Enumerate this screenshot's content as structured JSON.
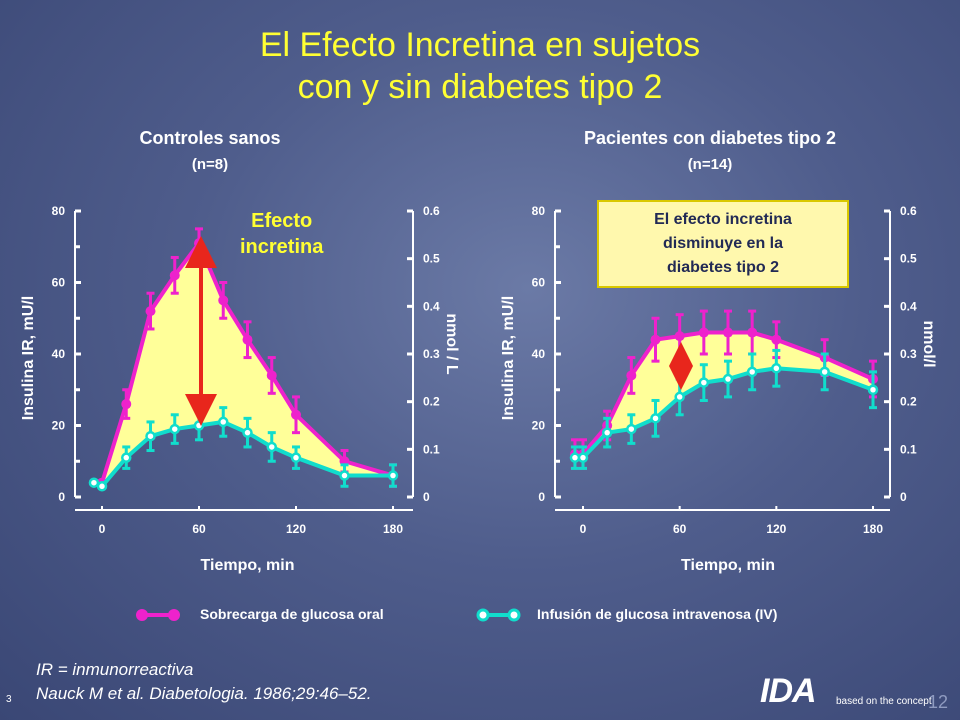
{
  "title_line1": "El Efecto Incretina en sujetos",
  "title_line2": "con y sin diabetes tipo 2",
  "effect_label_1": "Efecto",
  "effect_label_2": "incretina",
  "note_lines": [
    "El efecto incretina",
    "disminuye en la",
    "diabetes tipo 2"
  ],
  "legend": {
    "oral": "Sobrecarga de glucosa oral",
    "iv": "Infusión de glucosa intravenosa (IV)"
  },
  "footnote_1": "IR = inmunorreactiva",
  "footnote_2": "Nauck M et al. Diabetologia. 1986;29:46–52.",
  "slide_number": "3",
  "page_number": "12",
  "logo_text": "IDA",
  "logo_tag": "based on the concept",
  "colors": {
    "oral": "#ee22cc",
    "iv": "#11ddcc",
    "fill": "#ffff99",
    "arrow": "#e8261c",
    "title": "#ffff33"
  },
  "chart_data": [
    {
      "type": "line",
      "title": "Controles sanos",
      "subtitle": "(n=8)",
      "xlabel": "Tiempo, min",
      "ylabel": "Insulina IR, mU/l",
      "y2label": "nmol / L",
      "xlim": [
        0,
        180
      ],
      "ylim": [
        0,
        80
      ],
      "y2lim": [
        0,
        0.6
      ],
      "x_ticks": [
        "0",
        "60",
        "120",
        "180"
      ],
      "y_ticks": [
        "0",
        "20",
        "40",
        "60",
        "80"
      ],
      "y2_ticks": [
        "0",
        "0.1",
        "0.2",
        "0.3",
        "0.4",
        "0.5",
        "0.6"
      ],
      "series": [
        {
          "name": "Sobrecarga de glucosa oral",
          "style": "filled",
          "x": [
            -5,
            0,
            15,
            30,
            45,
            60,
            75,
            90,
            105,
            120,
            150,
            180
          ],
          "y": [
            4,
            4,
            26,
            52,
            62,
            71,
            55,
            44,
            34,
            23,
            10,
            6
          ],
          "err": [
            0,
            0,
            4,
            5,
            5,
            4,
            5,
            5,
            5,
            5,
            3,
            3
          ]
        },
        {
          "name": "Infusión de glucosa intravenosa (IV)",
          "style": "open",
          "x": [
            -5,
            0,
            15,
            30,
            45,
            60,
            75,
            90,
            105,
            120,
            150,
            180
          ],
          "y": [
            4,
            3,
            11,
            17,
            19,
            20,
            21,
            18,
            14,
            11,
            6,
            6
          ],
          "err": [
            0,
            0,
            3,
            4,
            4,
            4,
            4,
            4,
            4,
            3,
            3,
            3
          ]
        }
      ]
    },
    {
      "type": "line",
      "title": "Pacientes con diabetes tipo 2",
      "subtitle": "(n=14)",
      "xlabel": "Tiempo, min",
      "ylabel": "Insulina IR, mU/l",
      "y2label": "nmol/l",
      "xlim": [
        0,
        180
      ],
      "ylim": [
        0,
        80
      ],
      "y2lim": [
        0,
        0.6
      ],
      "x_ticks": [
        "0",
        "60",
        "120",
        "180"
      ],
      "y_ticks": [
        "0",
        "20",
        "40",
        "60",
        "80"
      ],
      "y2_ticks": [
        "0",
        "0.1",
        "0.2",
        "0.3",
        "0.4",
        "0.5",
        "0.6"
      ],
      "series": [
        {
          "name": "Sobrecarga de glucosa oral",
          "style": "filled",
          "x": [
            -5,
            0,
            15,
            30,
            45,
            60,
            75,
            90,
            105,
            120,
            150,
            180
          ],
          "y": [
            12,
            12,
            20,
            34,
            44,
            45,
            46,
            46,
            46,
            44,
            39,
            33
          ],
          "err": [
            4,
            4,
            4,
            5,
            6,
            6,
            6,
            6,
            6,
            5,
            5,
            5
          ]
        },
        {
          "name": "Infusión de glucosa intravenosa (IV)",
          "style": "open",
          "x": [
            -5,
            0,
            15,
            30,
            45,
            60,
            75,
            90,
            105,
            120,
            150,
            180
          ],
          "y": [
            11,
            11,
            18,
            19,
            22,
            28,
            32,
            33,
            35,
            36,
            35,
            30
          ],
          "err": [
            3,
            3,
            4,
            4,
            5,
            5,
            5,
            5,
            5,
            5,
            5,
            5
          ]
        }
      ]
    }
  ]
}
